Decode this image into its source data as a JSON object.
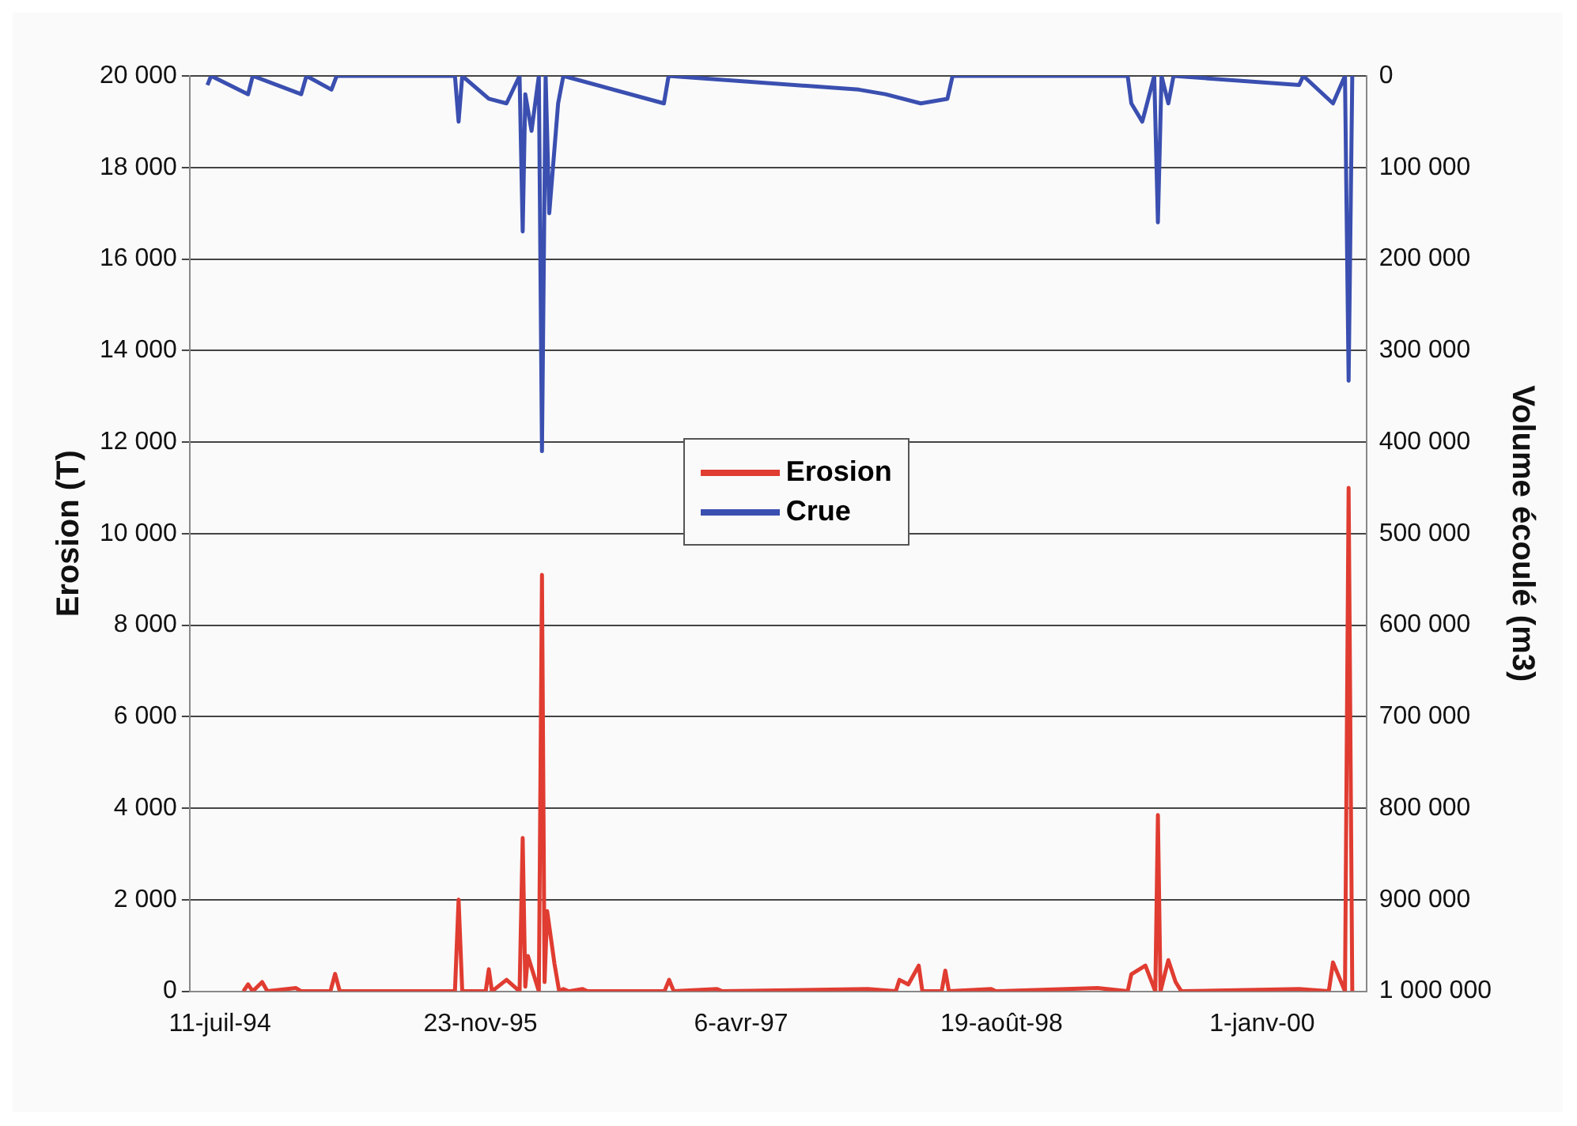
{
  "chart_data": {
    "type": "line",
    "ylabel": "Erosion (T)",
    "y2label": "Volume écoulé (m3)",
    "xlim": [
      "1994-05-14",
      "2000-07-19"
    ],
    "xticks": [
      {
        "value": "1994-07-11",
        "label": "11-juil-94"
      },
      {
        "value": "1995-11-23",
        "label": "23-nov-95"
      },
      {
        "value": "1997-04-06",
        "label": "6-avr-97"
      },
      {
        "value": "1998-08-19",
        "label": "19-août-98"
      },
      {
        "value": "2000-01-01",
        "label": "1-janv-00"
      }
    ],
    "ylim": [
      0,
      20000
    ],
    "yticks": [
      {
        "value": 0,
        "label": "0"
      },
      {
        "value": 2000,
        "label": "2 000"
      },
      {
        "value": 4000,
        "label": "4 000"
      },
      {
        "value": 6000,
        "label": "6 000"
      },
      {
        "value": 8000,
        "label": "8 000"
      },
      {
        "value": 10000,
        "label": "10 000"
      },
      {
        "value": 12000,
        "label": "12 000"
      },
      {
        "value": 14000,
        "label": "14 000"
      },
      {
        "value": 16000,
        "label": "16 000"
      },
      {
        "value": 18000,
        "label": "18 000"
      },
      {
        "value": 20000,
        "label": "20 000"
      }
    ],
    "y2lim": [
      1000000,
      0
    ],
    "y2ticks": [
      {
        "value": 0,
        "label": "0"
      },
      {
        "value": 100000,
        "label": "100 000"
      },
      {
        "value": 200000,
        "label": "200 000"
      },
      {
        "value": 300000,
        "label": "300 000"
      },
      {
        "value": 400000,
        "label": "400 000"
      },
      {
        "value": 500000,
        "label": "500 000"
      },
      {
        "value": 600000,
        "label": "600 000"
      },
      {
        "value": 700000,
        "label": "700 000"
      },
      {
        "value": 800000,
        "label": "800 000"
      },
      {
        "value": 900000,
        "label": "900 000"
      },
      {
        "value": 1000000,
        "label": "1 000 000"
      }
    ],
    "grid": "y",
    "legend": "center",
    "marker": "none",
    "line_style": "solid",
    "series": [
      {
        "name": "Erosion",
        "color": "#e03c31",
        "x": [
          "1994-08-25",
          "1994-09-03",
          "1994-09-12",
          "1994-09-30",
          "1994-10-10",
          "1994-12-04",
          "1994-12-14",
          "1995-02-08",
          "1995-02-17",
          "1995-02-26",
          "1995-10-05",
          "1995-10-12",
          "1995-10-19",
          "1995-12-03",
          "1995-12-09",
          "1995-12-15",
          "1996-01-12",
          "1996-02-06",
          "1996-02-12",
          "1996-02-17",
          "1996-02-22",
          "1996-03-14",
          "1996-03-20",
          "1996-03-25",
          "1996-03-30",
          "1996-04-13",
          "1996-04-22",
          "1996-04-30",
          "1996-05-10",
          "1996-06-06",
          "1996-06-15",
          "1996-11-10",
          "1996-11-19",
          "1996-11-28",
          "1997-02-19",
          "1997-03-01",
          "1997-12-05",
          "1998-01-28",
          "1998-02-04",
          "1998-02-21",
          "1998-03-13",
          "1998-03-20",
          "1998-04-26",
          "1998-05-03",
          "1998-05-10",
          "1998-07-30",
          "1998-08-08",
          "1999-02-19",
          "1999-04-18",
          "1999-04-25",
          "1999-05-22",
          "1999-06-10",
          "1999-06-15",
          "1999-06-20",
          "1999-07-05",
          "1999-07-19",
          "1999-07-30",
          "2000-03-12",
          "2000-05-08",
          "2000-05-16",
          "2000-06-08",
          "2000-06-15",
          "2000-06-22"
        ],
        "values": [
          0,
          150,
          0,
          200,
          0,
          70,
          0,
          0,
          380,
          0,
          0,
          2000,
          0,
          0,
          480,
          0,
          250,
          0,
          3350,
          100,
          770,
          0,
          9100,
          200,
          1750,
          600,
          0,
          50,
          0,
          50,
          0,
          0,
          250,
          0,
          50,
          0,
          50,
          0,
          250,
          150,
          560,
          0,
          0,
          450,
          0,
          50,
          0,
          70,
          0,
          370,
          560,
          0,
          3850,
          0,
          680,
          200,
          0,
          50,
          0,
          630,
          0,
          11000,
          0
        ]
      },
      {
        "name": "Crue",
        "color": "#3a4fb0",
        "axis": "y2",
        "x": [
          "1994-06-17",
          "1994-06-24",
          "1994-09-03",
          "1994-09-12",
          "1994-12-14",
          "1994-12-24",
          "1995-02-10",
          "1995-02-20",
          "1995-10-05",
          "1995-10-12",
          "1995-10-19",
          "1995-12-09",
          "1996-01-12",
          "1996-02-06",
          "1996-02-12",
          "1996-02-17",
          "1996-02-29",
          "1996-03-14",
          "1996-03-20",
          "1996-03-27",
          "1996-04-03",
          "1996-04-20",
          "1996-04-30",
          "1996-11-09",
          "1996-11-18",
          "1997-11-18",
          "1998-01-08",
          "1998-03-17",
          "1998-05-07",
          "1998-05-17",
          "1999-04-18",
          "1999-04-25",
          "1999-05-16",
          "1999-06-08",
          "1999-06-15",
          "1999-06-22",
          "1999-07-05",
          "1999-07-15",
          "2000-03-12",
          "2000-03-20",
          "2000-05-16",
          "2000-06-08",
          "2000-06-15",
          "2000-06-22"
        ],
        "values": [
          10000,
          0,
          20000,
          0,
          20000,
          0,
          15000,
          0,
          0,
          50000,
          0,
          25000,
          30000,
          0,
          170000,
          20000,
          60000,
          0,
          410000,
          0,
          150000,
          30000,
          0,
          30000,
          0,
          15000,
          20000,
          30000,
          25000,
          0,
          0,
          30000,
          50000,
          0,
          160000,
          0,
          30000,
          0,
          10000,
          0,
          30000,
          0,
          333000,
          0
        ]
      }
    ]
  }
}
